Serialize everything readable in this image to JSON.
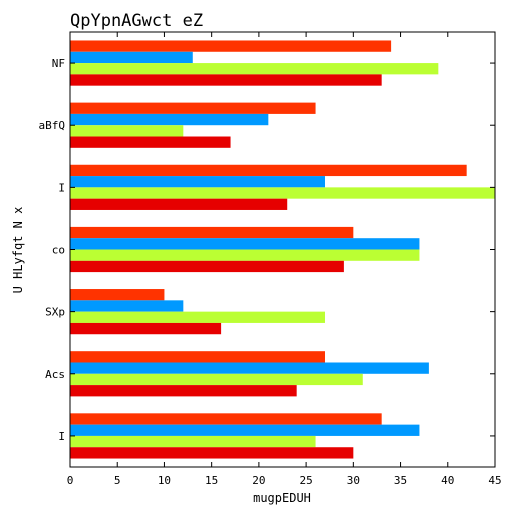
{
  "chart_data": {
    "type": "bar",
    "orientation": "horizontal",
    "title": "QpYpnAGwct eZ",
    "xlabel": "mugpEDUH",
    "ylabel": "U HLyfqt  N x",
    "xlim": [
      0,
      45
    ],
    "xticks": [
      0,
      5,
      10,
      15,
      20,
      25,
      30,
      35,
      40,
      45
    ],
    "grid": false,
    "legend": "none",
    "categories": [
      "NF",
      "aBfQ",
      "I",
      "co",
      "SXp",
      "Acs",
      "I"
    ],
    "series": [
      {
        "color": "#ff3300",
        "values": [
          34,
          26,
          42,
          30,
          10,
          27,
          33
        ]
      },
      {
        "color": "#0099ff",
        "values": [
          13,
          21,
          27,
          37,
          12,
          38,
          37
        ]
      },
      {
        "color": "#bbff33",
        "values": [
          39,
          12,
          45,
          37,
          27,
          31,
          26
        ]
      },
      {
        "color": "#e60000",
        "values": [
          33,
          17,
          23,
          29,
          16,
          24,
          30
        ]
      }
    ]
  }
}
